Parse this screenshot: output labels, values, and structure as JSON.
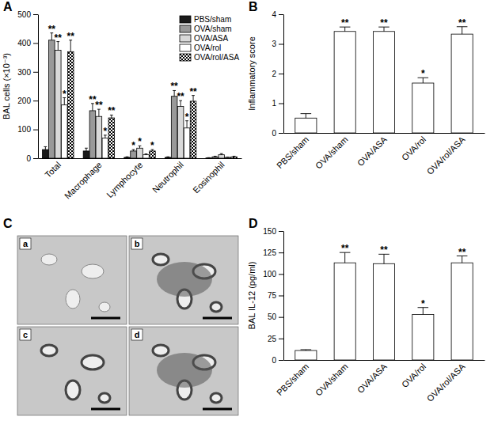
{
  "chart_data": [
    {
      "type": "bar",
      "panel": "A",
      "y_label": "BAL cells (×10⁻³)",
      "categories": [
        "Total",
        "Macrophage",
        "Lymphocyte",
        "Neutrophil",
        "Eosinophil"
      ],
      "series": [
        {
          "name": "PBS/sham",
          "color": "#1a1a1a",
          "values": [
            30,
            25,
            3,
            3,
            1
          ],
          "errors": [
            10,
            10,
            2,
            2,
            1
          ],
          "annotations": [
            null,
            null,
            null,
            null,
            null
          ]
        },
        {
          "name": "OVA/sham",
          "color": "#999999",
          "values": [
            410,
            165,
            25,
            215,
            5
          ],
          "errors": [
            25,
            25,
            5,
            20,
            2
          ],
          "annotations": [
            "**",
            "**",
            "*",
            "**",
            null
          ]
        },
        {
          "name": "OVA/ASA",
          "color": "#d9d9d9",
          "values": [
            375,
            145,
            35,
            180,
            12
          ],
          "errors": [
            30,
            25,
            8,
            20,
            4
          ],
          "annotations": [
            "**",
            "**",
            "*",
            "**",
            null
          ]
        },
        {
          "name": "OVA/rol",
          "color": "#ffffff",
          "values": [
            185,
            70,
            12,
            105,
            3
          ],
          "errors": [
            25,
            10,
            3,
            25,
            1
          ],
          "annotations": [
            "*",
            "*",
            null,
            "*",
            null
          ]
        },
        {
          "name": "OVA/rol/ASA",
          "color": "#000000",
          "marker": "checkered",
          "values": [
            370,
            140,
            25,
            198,
            5
          ],
          "errors": [
            40,
            10,
            5,
            20,
            2
          ],
          "annotations": [
            "**",
            "**",
            "*",
            "**",
            null
          ]
        }
      ],
      "ylim": [
        0,
        500
      ],
      "yticks": [
        0,
        100,
        200,
        300,
        400,
        500
      ],
      "legend": "top-right"
    },
    {
      "type": "bar",
      "panel": "B",
      "y_label": "Inflammatory score",
      "categories": [
        "PBS/sham",
        "OVA/sham",
        "OVA/ASA",
        "OVA/rol",
        "OVA/rol/ASA"
      ],
      "values": [
        0.5,
        3.42,
        3.42,
        1.68,
        3.33
      ],
      "errors": [
        0.15,
        0.15,
        0.15,
        0.18,
        0.25
      ],
      "annotations": [
        null,
        "**",
        "**",
        "*",
        "**"
      ],
      "color": "#ffffff",
      "ylim": [
        0,
        4
      ],
      "yticks": [
        0,
        1,
        2,
        3,
        4
      ]
    },
    {
      "type": "bar",
      "panel": "D",
      "y_label": "BAL IL-12 (pg/ml)",
      "categories": [
        "PBS/sham",
        "OVA/sham",
        "OVA/ASA",
        "OVA/rol",
        "OVA/rol/ASA"
      ],
      "values": [
        11,
        113,
        112,
        53,
        113
      ],
      "errors": [
        1,
        12,
        11,
        8,
        8
      ],
      "annotations": [
        null,
        "**",
        "**",
        "*",
        "**"
      ],
      "color": "#ffffff",
      "ylim": [
        0,
        150
      ],
      "yticks": [
        0,
        25,
        50,
        75,
        100,
        125,
        150
      ]
    }
  ],
  "image_panel": {
    "panel": "C",
    "labels": [
      "a",
      "b",
      "c",
      "d"
    ]
  }
}
